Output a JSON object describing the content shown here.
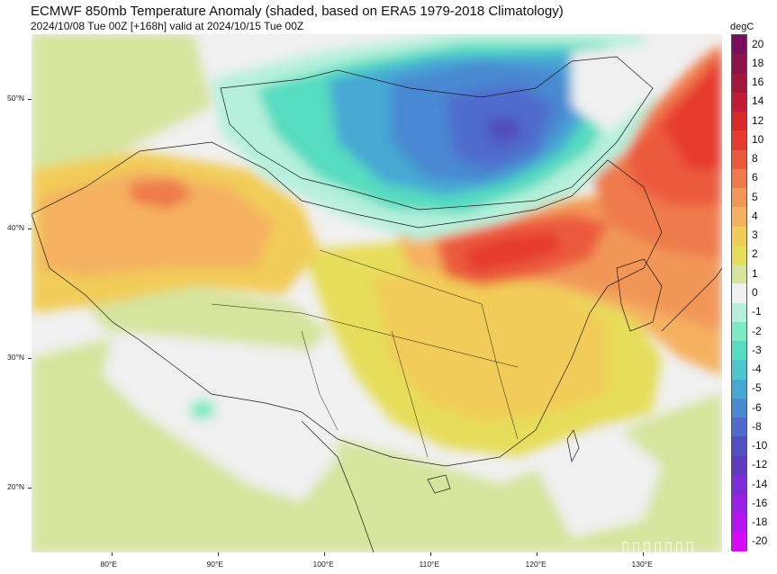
{
  "header": {
    "title": "ECMWF 850mb Temperature Anomaly (shaded, based on ERA5 1979-2018 Climatology)",
    "subtitle": "2024/10/08 Tue 00Z [+168h] valid at 2024/10/15 Tue 00Z"
  },
  "axes": {
    "lat_labels": [
      {
        "text": "50°N",
        "lat": 50
      },
      {
        "text": "40°N",
        "lat": 40
      },
      {
        "text": "30°N",
        "lat": 30
      },
      {
        "text": "20°N",
        "lat": 20
      }
    ],
    "lon_labels": [
      {
        "text": "80°E",
        "lon": 80
      },
      {
        "text": "90°E",
        "lon": 90
      },
      {
        "text": "100°E",
        "lon": 100
      },
      {
        "text": "110°E",
        "lon": 110
      },
      {
        "text": "120°E",
        "lon": 120
      },
      {
        "text": "130°E",
        "lon": 130
      }
    ],
    "lon_range": [
      72.5,
      137.5
    ],
    "lat_range": [
      15,
      55
    ]
  },
  "colorbar": {
    "unit": "degC",
    "levels": [
      {
        "label": "20",
        "color": "#7a0f5c"
      },
      {
        "label": "18",
        "color": "#8b1449"
      },
      {
        "label": "16",
        "color": "#a3173f"
      },
      {
        "label": "14",
        "color": "#c11b37"
      },
      {
        "label": "12",
        "color": "#d92a2a"
      },
      {
        "label": "10",
        "color": "#e63a2e"
      },
      {
        "label": "8",
        "color": "#ec5a3c"
      },
      {
        "label": "6",
        "color": "#ef7a4c"
      },
      {
        "label": "5",
        "color": "#f29659"
      },
      {
        "label": "4",
        "color": "#f5b160"
      },
      {
        "label": "3",
        "color": "#f2cc58"
      },
      {
        "label": "2",
        "color": "#e6dd5a"
      },
      {
        "label": "1",
        "color": "#d6e49c"
      },
      {
        "label": "0",
        "color": "#f0f0f0"
      },
      {
        "label": "-1",
        "color": "#b6f0dc"
      },
      {
        "label": "-2",
        "color": "#7eeac4"
      },
      {
        "label": "-3",
        "color": "#56dcc0"
      },
      {
        "label": "-4",
        "color": "#4cc6cc"
      },
      {
        "label": "-5",
        "color": "#46a8d4"
      },
      {
        "label": "-6",
        "color": "#4a88d2"
      },
      {
        "label": "-8",
        "color": "#4f6ccc"
      },
      {
        "label": "-10",
        "color": "#5150c2"
      },
      {
        "label": "-12",
        "color": "#5e3cc0"
      },
      {
        "label": "-14",
        "color": "#7a2cd6"
      },
      {
        "label": "-16",
        "color": "#9a1ee6"
      },
      {
        "label": "-18",
        "color": "#b814f0"
      },
      {
        "label": "-20",
        "color": "#d40af8"
      }
    ]
  },
  "regions": [
    {
      "name": "mongolia-cold",
      "level": "-6"
    },
    {
      "name": "northeast-warm",
      "level": "10"
    },
    {
      "name": "north-china-warm",
      "level": "8"
    },
    {
      "name": "xinjiang-warm",
      "level": "6"
    },
    {
      "name": "south-china-neutral",
      "level": "0"
    }
  ],
  "watermark": "▯▯▯▯▯▯▯"
}
